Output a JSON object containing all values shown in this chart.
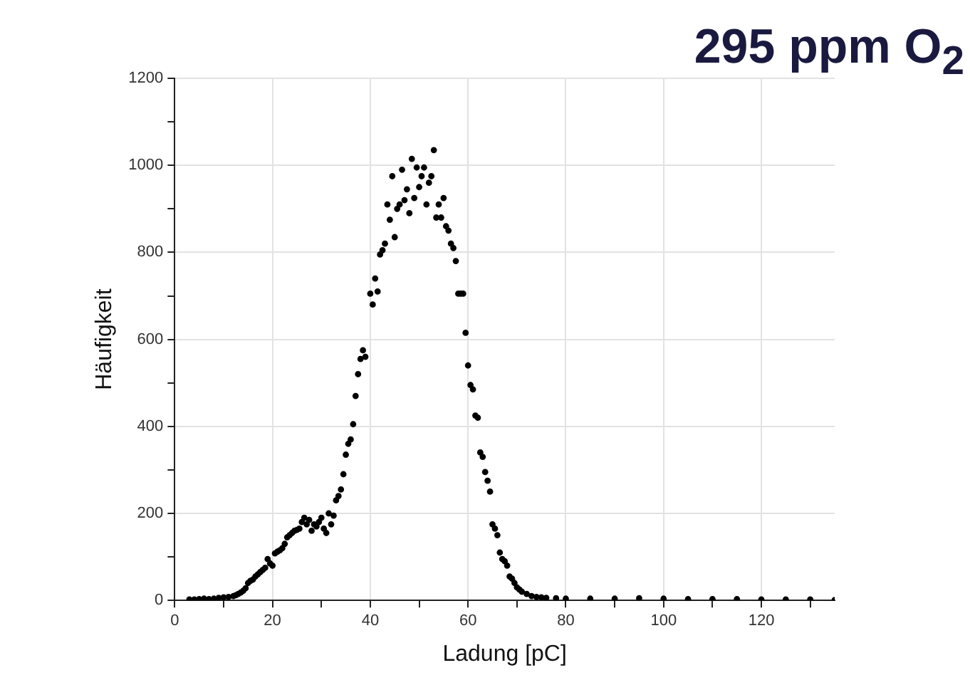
{
  "chart_data": {
    "type": "scatter",
    "title": "295 ppm O$_{2}$",
    "xlabel": "Ladung [pC]",
    "ylabel": "Häufigkeit",
    "xlim": [
      0,
      135
    ],
    "ylim": [
      0,
      1200
    ],
    "xticks": [
      0,
      {
        "value": 10,
        "label": null
      },
      20,
      {
        "value": 30,
        "label": null
      },
      40,
      {
        "value": 50,
        "label": null
      },
      60,
      {
        "value": 70,
        "label": null
      },
      80,
      {
        "value": 90,
        "label": null
      },
      100,
      {
        "value": 110,
        "label": null
      },
      120,
      {
        "value": 130,
        "label": null
      }
    ],
    "yticks": [
      0,
      {
        "value": 100,
        "label": null
      },
      200,
      {
        "value": 300,
        "label": null
      },
      400,
      {
        "value": 500,
        "label": null
      },
      600,
      {
        "value": 700,
        "label": null
      },
      800,
      {
        "value": 900,
        "label": null
      },
      1000,
      {
        "value": 1100,
        "label": null
      },
      1200
    ],
    "grid": true,
    "marker": "circle",
    "legend": false,
    "series": [
      {
        "color": "#000000",
        "x": [
          3,
          4,
          5,
          6,
          7,
          8,
          9,
          10,
          11,
          12,
          12.5,
          13,
          13.5,
          14,
          14.5,
          15,
          15.5,
          16,
          16.5,
          17,
          17.5,
          18,
          18.5,
          19,
          19.5,
          20,
          20.5,
          21,
          21.5,
          22,
          22.5,
          23,
          23.5,
          24,
          24.5,
          25,
          25.5,
          26,
          26.5,
          27,
          27.5,
          28,
          28.5,
          29,
          29.5,
          30,
          30.5,
          31,
          31.5,
          32,
          32.5,
          33,
          33.5,
          34,
          34.5,
          35,
          35.5,
          36,
          36.5,
          37,
          37.5,
          38,
          38.5,
          39,
          40,
          40.5,
          41,
          41.5,
          42,
          42.5,
          43,
          43.5,
          44,
          44.5,
          45,
          45.5,
          46,
          46.5,
          47,
          47.5,
          48,
          48.5,
          49,
          49.5,
          50,
          50.5,
          51,
          51.5,
          52,
          52.5,
          53,
          53.5,
          54,
          54.5,
          55,
          55.5,
          56,
          56.5,
          57,
          57.5,
          58,
          58.5,
          59,
          59.5,
          60,
          60.5,
          61,
          61.5,
          62,
          62.5,
          63,
          63.5,
          64,
          64.5,
          65,
          65.5,
          66,
          66.5,
          67,
          67.5,
          68,
          68.5,
          69,
          69.5,
          70,
          70.5,
          71,
          72,
          73,
          74,
          75,
          76,
          78,
          80,
          85,
          90,
          95,
          100,
          105,
          110,
          115,
          120,
          125,
          130,
          135
        ],
        "values": [
          2,
          2,
          3,
          4,
          3,
          4,
          6,
          7,
          8,
          10,
          12,
          15,
          18,
          22,
          28,
          40,
          45,
          48,
          55,
          60,
          65,
          70,
          75,
          95,
          85,
          80,
          108,
          112,
          115,
          120,
          130,
          145,
          150,
          155,
          160,
          162,
          165,
          180,
          190,
          175,
          185,
          160,
          175,
          170,
          180,
          190,
          165,
          155,
          200,
          175,
          195,
          230,
          240,
          255,
          290,
          335,
          360,
          370,
          405,
          470,
          520,
          555,
          575,
          560,
          705,
          680,
          740,
          710,
          795,
          805,
          820,
          910,
          875,
          975,
          835,
          900,
          910,
          990,
          920,
          945,
          890,
          1015,
          925,
          995,
          950,
          975,
          995,
          910,
          960,
          975,
          1035,
          880,
          910,
          880,
          925,
          860,
          850,
          820,
          810,
          780,
          705,
          705,
          705,
          615,
          540,
          495,
          485,
          425,
          420,
          340,
          330,
          295,
          275,
          250,
          175,
          165,
          150,
          110,
          95,
          90,
          80,
          55,
          50,
          40,
          30,
          25,
          20,
          15,
          10,
          8,
          7,
          6,
          5,
          4,
          4,
          4,
          5,
          4,
          3,
          3,
          3,
          2,
          2,
          2,
          1
        ]
      }
    ]
  }
}
